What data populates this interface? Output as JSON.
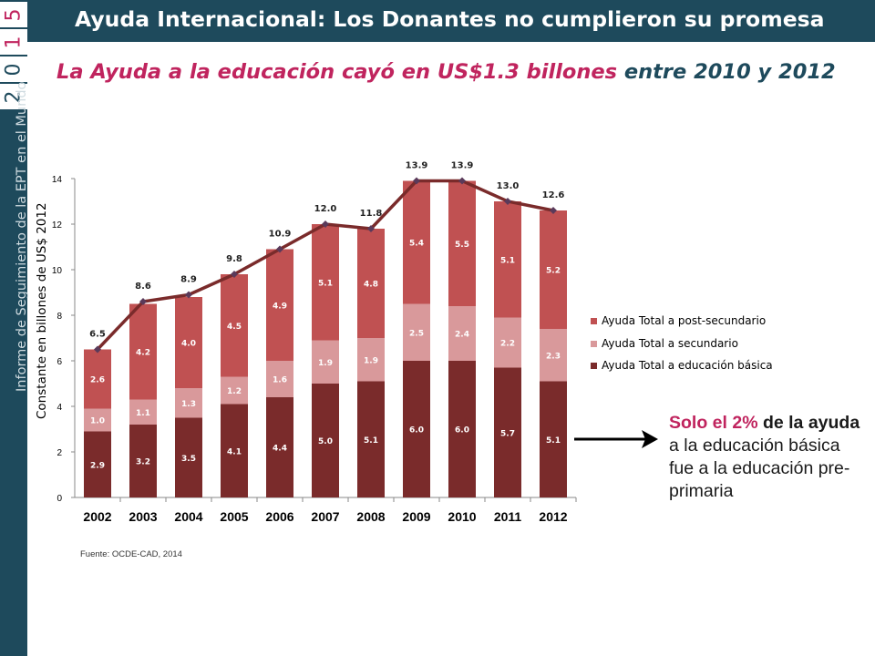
{
  "sidebar": {
    "year_digits": [
      "2",
      "0",
      "1",
      "5"
    ],
    "report_name": "Informe de Seguimiento de la EPT en el Mundo"
  },
  "header": {
    "title": "Ayuda Internacional: Los Donantes no cumplieron su promesa"
  },
  "subtitle": {
    "highlight": "La Ayuda a la educación cayó en US$1.3 billones",
    "rest": " entre 2010 y 2012"
  },
  "source": "Fuente: OCDE-CAD, 2014",
  "callout": {
    "part1": "Solo el 2%",
    "part2": " de la ",
    "part3": "ayuda",
    "part4": " a la educación básica fue a la educación pre-primaria"
  },
  "colors": {
    "dark_teal": "#1e4a5c",
    "basic": "#7a2b2b",
    "secondary": "#d9999b",
    "post_secondary": "#c05152",
    "total_line": "#7a2b2b",
    "accent_pink": "#c0245e"
  },
  "chart_data": {
    "type": "bar",
    "stacked": true,
    "categories": [
      "2002",
      "2003",
      "2004",
      "2005",
      "2006",
      "2007",
      "2008",
      "2009",
      "2010",
      "2011",
      "2012"
    ],
    "series": [
      {
        "name": "Ayuda Total a  educación básica",
        "values": [
          2.9,
          3.2,
          3.5,
          4.1,
          4.4,
          5.0,
          5.1,
          6.0,
          6.0,
          5.7,
          5.1
        ]
      },
      {
        "name": "Ayuda Total a secundario",
        "values": [
          1.0,
          1.1,
          1.3,
          1.2,
          1.6,
          1.9,
          1.9,
          2.5,
          2.4,
          2.2,
          2.3
        ]
      },
      {
        "name": "Ayuda Total a post-secundario",
        "values": [
          2.6,
          4.2,
          4.0,
          4.5,
          4.9,
          5.1,
          4.8,
          5.4,
          5.5,
          5.1,
          5.2
        ]
      }
    ],
    "totals": [
      6.5,
      8.6,
      8.9,
      9.8,
      10.9,
      12.0,
      11.8,
      13.9,
      13.9,
      13.0,
      12.6
    ],
    "ylabel": "Constante en billones de US$  2012",
    "ylim": [
      0,
      14
    ],
    "yticks": [
      0,
      2,
      4,
      6,
      8,
      10,
      12,
      14
    ],
    "legend_position": "right",
    "legend_order": [
      "Ayuda Total a post-secundario",
      "Ayuda Total a secundario",
      "Ayuda Total a  educación básica"
    ]
  }
}
